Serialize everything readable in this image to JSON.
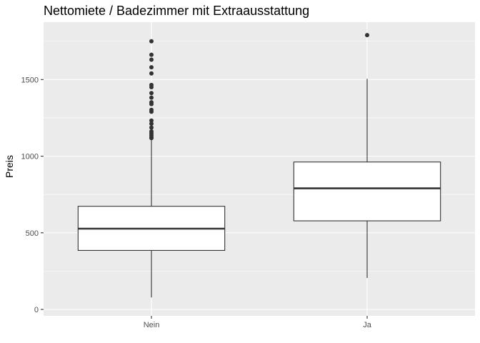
{
  "chart_data": {
    "type": "boxplot",
    "title": "Nettomiete / Badezimmer mit Extraausstattung",
    "xlabel": "",
    "ylabel": "Preis",
    "categories": [
      "Nein",
      "Ja"
    ],
    "ylim": [
      0,
      1880
    ],
    "y_ticks": [
      0,
      500,
      1000,
      1500
    ],
    "y_tick_labels": [
      "0",
      "500",
      "1000",
      "1500"
    ],
    "grid": true,
    "boxes": [
      {
        "category": "Nein",
        "whisker_low": 78,
        "q1": 385,
        "median": 527,
        "q3": 673,
        "whisker_high": 1105,
        "outliers": [
          1118,
          1125,
          1138,
          1150,
          1162,
          1187,
          1212,
          1232,
          1290,
          1302,
          1340,
          1352,
          1382,
          1412,
          1450,
          1465,
          1540,
          1580,
          1630,
          1662,
          1750
        ]
      },
      {
        "category": "Ja",
        "whisker_low": 205,
        "q1": 578,
        "median": 790,
        "q3": 962,
        "whisker_high": 1505,
        "outliers": [
          1790
        ]
      }
    ],
    "colors": {
      "panel_background": "#ebebeb",
      "grid_major": "#ffffff",
      "box_fill": "#ffffff",
      "box_line": "#333333",
      "outlier": "#333333",
      "tick_text": "#4d4d4d"
    }
  }
}
